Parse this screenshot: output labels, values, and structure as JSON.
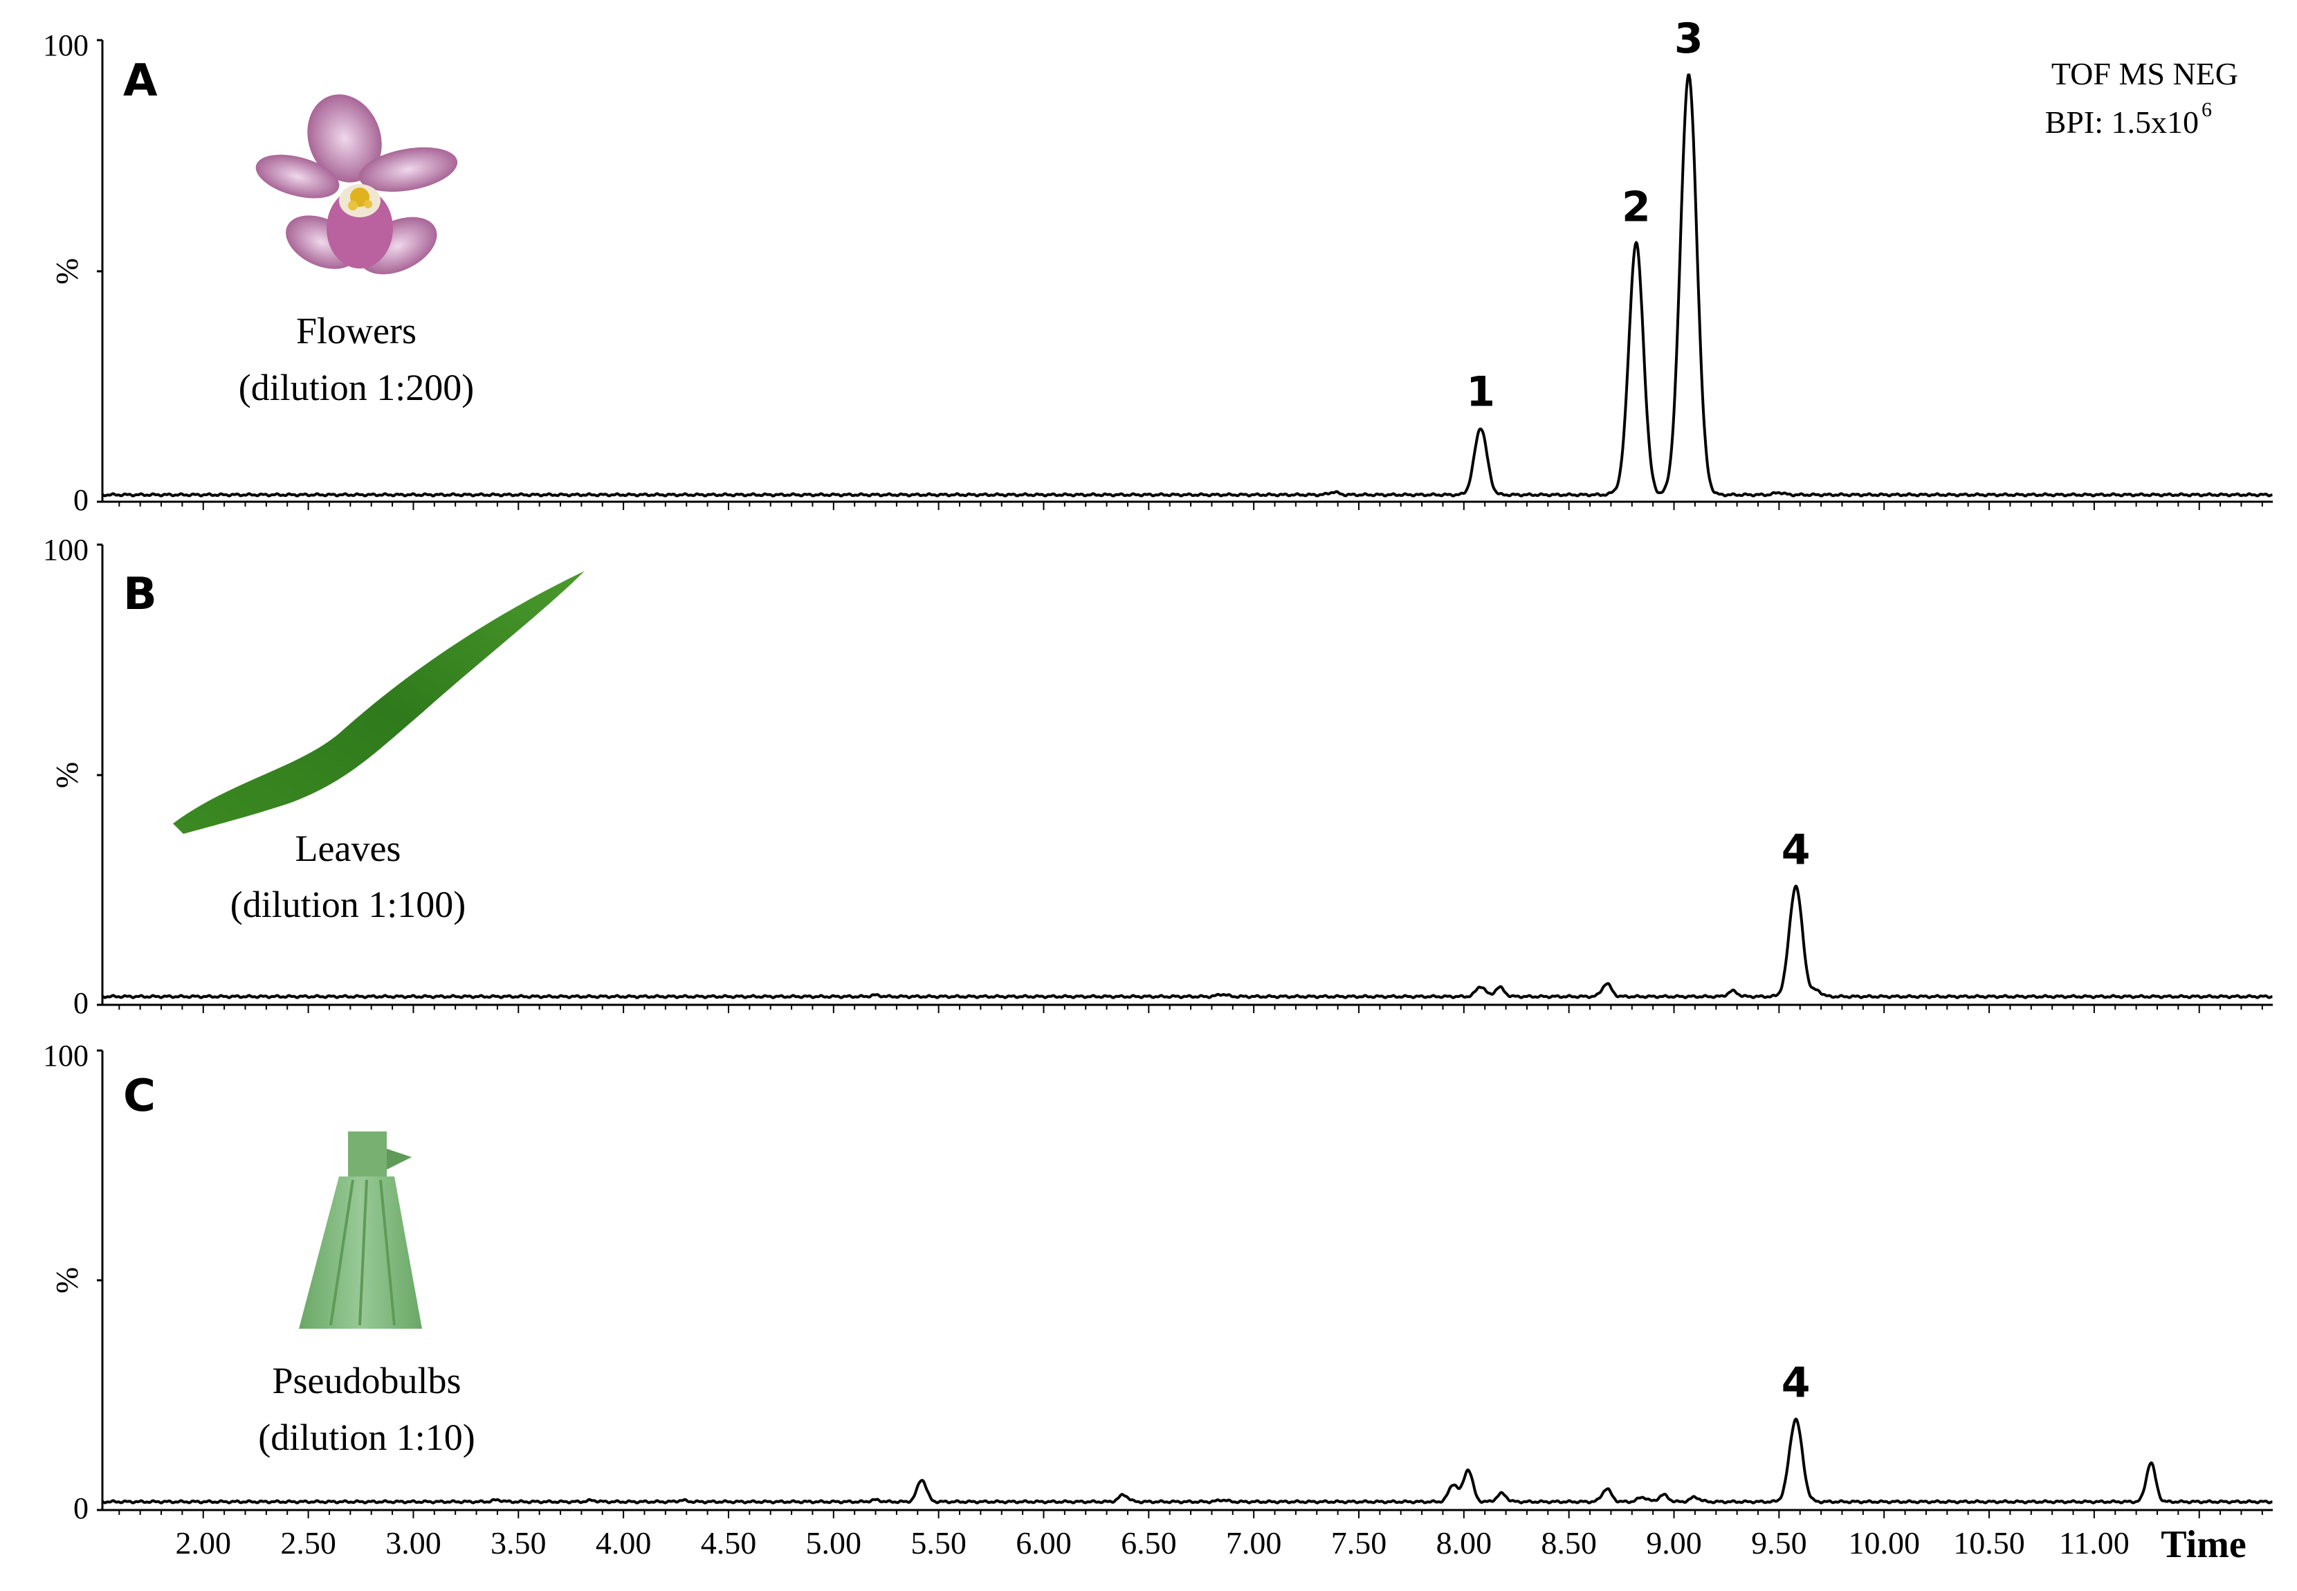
{
  "chart_data": {
    "type": "line",
    "detector_label": "TOF MS NEG",
    "bpi_label_prefix": "BPI: 1.5x10",
    "bpi_label_exp": "6",
    "xlabel": "Time",
    "x_ticks": [
      "2.00",
      "2.50",
      "3.00",
      "3.50",
      "4.00",
      "4.50",
      "5.00",
      "5.50",
      "6.00",
      "6.50",
      "7.00",
      "7.50",
      "8.00",
      "8.50",
      "9.00",
      "9.50",
      "10.00",
      "10.50",
      "11.00"
    ],
    "xlim": [
      1.52,
      11.85
    ],
    "ylim": [
      0,
      100
    ],
    "y_tick_labels": {
      "top": "100",
      "mid": "%",
      "bottom": "0"
    },
    "panels": [
      {
        "letter": "A",
        "sample": "Flowers",
        "dilution": "(dilution 1:200)",
        "baseline": 1.5,
        "peaks": [
          {
            "label": "1",
            "rt": 8.08,
            "height": 14.5
          },
          {
            "label": "2",
            "rt": 8.82,
            "height": 54.5
          },
          {
            "label": "3",
            "rt": 9.07,
            "height": 91.0
          }
        ],
        "minor_peaks": [
          [
            7.38,
            0.6
          ],
          [
            8.72,
            0.4
          ],
          [
            9.5,
            0.5
          ]
        ]
      },
      {
        "letter": "B",
        "sample": "Leaves",
        "dilution": "(dilution 1:100)",
        "baseline": 1.8,
        "peaks": [
          {
            "label": "4",
            "rt": 9.58,
            "height": 24.0
          }
        ],
        "minor_peaks": [
          [
            8.08,
            2.2
          ],
          [
            8.17,
            2.0
          ],
          [
            8.68,
            2.8
          ],
          [
            9.28,
            1.2
          ],
          [
            9.68,
            1.3
          ],
          [
            5.2,
            0.3
          ],
          [
            6.85,
            0.5
          ]
        ]
      },
      {
        "letter": "C",
        "sample": "Pseudobulbs",
        "dilution": "(dilution 1:10)",
        "baseline": 1.8,
        "peaks": [
          {
            "label": "4",
            "rt": 9.58,
            "height": 18.0
          }
        ],
        "minor_peaks": [
          [
            5.42,
            4.8
          ],
          [
            6.38,
            1.5
          ],
          [
            7.95,
            3.8
          ],
          [
            8.02,
            7.0
          ],
          [
            8.18,
            1.8
          ],
          [
            8.68,
            2.8
          ],
          [
            8.85,
            1.0
          ],
          [
            8.95,
            1.5
          ],
          [
            9.1,
            1.0
          ],
          [
            11.27,
            8.5
          ],
          [
            3.4,
            0.4
          ],
          [
            3.85,
            0.3
          ],
          [
            4.28,
            0.3
          ],
          [
            5.2,
            0.4
          ],
          [
            6.85,
            0.4
          ]
        ]
      }
    ]
  }
}
